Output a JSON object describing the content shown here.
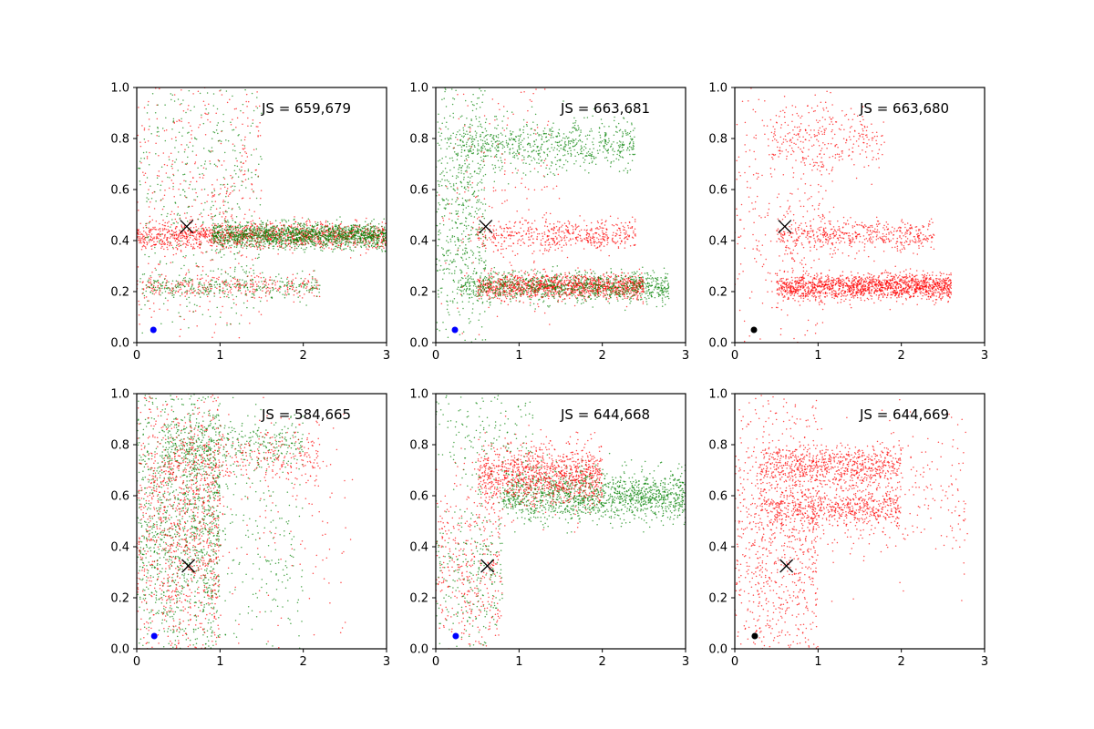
{
  "colors": {
    "series_a": "#ff0000",
    "series_b": "#008000",
    "cross": "#000000",
    "axis": "#000000"
  },
  "chart_data": [
    {
      "type": "scatter",
      "annotation": "JS = 659,679",
      "xlim": [
        0,
        3
      ],
      "ylim": [
        0,
        1
      ],
      "xticks": [
        "0",
        "1",
        "2",
        "3"
      ],
      "yticks": [
        "0.0",
        "0.2",
        "0.4",
        "0.6",
        "0.8",
        "1.0"
      ],
      "grid": false,
      "series_colors": [
        "red",
        "green"
      ],
      "clusters": [
        {
          "color": "red",
          "cx": [
            0.0,
            3.0
          ],
          "cy": 0.42,
          "sy": 0.025,
          "n": 1400
        },
        {
          "color": "green",
          "cx": [
            0.9,
            3.0
          ],
          "cy": 0.42,
          "sy": 0.025,
          "n": 1500
        },
        {
          "color": "red",
          "cx": [
            0.0,
            2.2
          ],
          "cy": 0.22,
          "sy": 0.025,
          "n": 300
        },
        {
          "color": "green",
          "cx": [
            0.0,
            2.2
          ],
          "cy": 0.22,
          "sy": 0.025,
          "n": 300
        },
        {
          "color": "red",
          "cx": [
            0.0,
            1.5
          ],
          "cy": 0.6,
          "sy": 0.35,
          "n": 500
        },
        {
          "color": "green",
          "cx": [
            0.0,
            1.5
          ],
          "cy": 0.6,
          "sy": 0.35,
          "n": 500
        }
      ],
      "cross": {
        "x": 0.6,
        "y": 0.455
      },
      "dot": {
        "x": 0.2,
        "y": 0.05,
        "color": "blue"
      }
    },
    {
      "type": "scatter",
      "annotation": "JS = 663,681",
      "xlim": [
        0,
        3
      ],
      "ylim": [
        0,
        1
      ],
      "xticks": [
        "0",
        "1",
        "2",
        "3"
      ],
      "yticks": [
        "0.0",
        "0.2",
        "0.4",
        "0.6",
        "0.8",
        "1.0"
      ],
      "grid": false,
      "series_colors": [
        "red",
        "green"
      ],
      "clusters": [
        {
          "color": "red",
          "cx": [
            0.5,
            2.5
          ],
          "cy": 0.22,
          "sy": 0.025,
          "n": 1300
        },
        {
          "color": "green",
          "cx": [
            0.3,
            2.8
          ],
          "cy": 0.22,
          "sy": 0.03,
          "n": 1000
        },
        {
          "color": "red",
          "cx": [
            0.5,
            2.4
          ],
          "cy": 0.42,
          "sy": 0.03,
          "n": 500
        },
        {
          "color": "green",
          "cx": [
            0.2,
            2.4
          ],
          "cy": 0.77,
          "sy": 0.05,
          "n": 700
        },
        {
          "color": "green",
          "cx": [
            0.0,
            0.6
          ],
          "cy": 0.55,
          "sy": 0.3,
          "n": 600
        },
        {
          "color": "red",
          "cx": [
            0.0,
            1.5
          ],
          "cy": 0.6,
          "sy": 0.3,
          "n": 200
        }
      ],
      "cross": {
        "x": 0.6,
        "y": 0.455
      },
      "dot": {
        "x": 0.23,
        "y": 0.05,
        "color": "blue"
      }
    },
    {
      "type": "scatter",
      "annotation": "JS = 663,680",
      "xlim": [
        0,
        3
      ],
      "ylim": [
        0,
        1
      ],
      "xticks": [
        "0",
        "1",
        "2",
        "3"
      ],
      "yticks": [
        "0.0",
        "0.2",
        "0.4",
        "0.6",
        "0.8",
        "1.0"
      ],
      "grid": false,
      "series_colors": [
        "red"
      ],
      "clusters": [
        {
          "color": "red",
          "cx": [
            0.5,
            2.6
          ],
          "cy": 0.22,
          "sy": 0.025,
          "n": 1600
        },
        {
          "color": "red",
          "cx": [
            0.5,
            2.4
          ],
          "cy": 0.42,
          "sy": 0.03,
          "n": 500
        },
        {
          "color": "red",
          "cx": [
            0.4,
            1.8
          ],
          "cy": 0.8,
          "sy": 0.06,
          "n": 250
        },
        {
          "color": "red",
          "cx": [
            0.0,
            1.2
          ],
          "cy": 0.55,
          "sy": 0.35,
          "n": 400
        }
      ],
      "cross": {
        "x": 0.6,
        "y": 0.455
      },
      "dot": {
        "x": 0.23,
        "y": 0.05,
        "color": "black"
      }
    },
    {
      "type": "scatter",
      "annotation": "JS = 584,665",
      "xlim": [
        0,
        3
      ],
      "ylim": [
        0,
        1
      ],
      "xticks": [
        "0",
        "1",
        "2",
        "3"
      ],
      "yticks": [
        "0.0",
        "0.2",
        "0.4",
        "0.6",
        "0.8",
        "1.0"
      ],
      "grid": false,
      "series_colors": [
        "red",
        "green"
      ],
      "clusters": [
        {
          "color": "green",
          "cx": [
            0.0,
            1.0
          ],
          "cy": 0.5,
          "sy": 0.3,
          "n": 1400
        },
        {
          "color": "red",
          "cx": [
            0.0,
            1.0
          ],
          "cy": 0.5,
          "sy": 0.3,
          "n": 1100
        },
        {
          "color": "green",
          "cx": [
            0.3,
            2.0
          ],
          "cy": 0.8,
          "sy": 0.05,
          "n": 400
        },
        {
          "color": "red",
          "cx": [
            0.3,
            2.2
          ],
          "cy": 0.75,
          "sy": 0.06,
          "n": 300
        },
        {
          "color": "green",
          "cx": [
            0.8,
            2.0
          ],
          "cy": 0.35,
          "sy": 0.25,
          "n": 200
        },
        {
          "color": "red",
          "cx": [
            0.8,
            2.6
          ],
          "cy": 0.5,
          "sy": 0.3,
          "n": 150
        }
      ],
      "cross": {
        "x": 0.62,
        "y": 0.325
      },
      "dot": {
        "x": 0.21,
        "y": 0.05,
        "color": "blue"
      }
    },
    {
      "type": "scatter",
      "annotation": "JS = 644,668",
      "xlim": [
        0,
        3
      ],
      "ylim": [
        0,
        1
      ],
      "xticks": [
        "0",
        "1",
        "2",
        "3"
      ],
      "yticks": [
        "0.0",
        "0.2",
        "0.4",
        "0.6",
        "0.8",
        "1.0"
      ],
      "grid": false,
      "series_colors": [
        "red",
        "green"
      ],
      "clusters": [
        {
          "color": "green",
          "cx": [
            0.8,
            3.0
          ],
          "cy": 0.6,
          "sy": 0.05,
          "n": 1400
        },
        {
          "color": "red",
          "cx": [
            0.5,
            2.0
          ],
          "cy": 0.68,
          "sy": 0.06,
          "n": 1100
        },
        {
          "color": "red",
          "cx": [
            0.0,
            0.8
          ],
          "cy": 0.3,
          "sy": 0.2,
          "n": 400
        },
        {
          "color": "green",
          "cx": [
            0.0,
            0.8
          ],
          "cy": 0.3,
          "sy": 0.2,
          "n": 300
        },
        {
          "color": "green",
          "cx": [
            0.0,
            1.2
          ],
          "cy": 0.85,
          "sy": 0.1,
          "n": 150
        }
      ],
      "cross": {
        "x": 0.62,
        "y": 0.325
      },
      "dot": {
        "x": 0.24,
        "y": 0.05,
        "color": "blue"
      }
    },
    {
      "type": "scatter",
      "annotation": "JS = 644,669",
      "xlim": [
        0,
        3
      ],
      "ylim": [
        0,
        1
      ],
      "xticks": [
        "0",
        "1",
        "2",
        "3"
      ],
      "yticks": [
        "0.0",
        "0.2",
        "0.4",
        "0.6",
        "0.8",
        "1.0"
      ],
      "grid": false,
      "series_colors": [
        "red"
      ],
      "clusters": [
        {
          "color": "red",
          "cx": [
            0.3,
            2.0
          ],
          "cy": 0.72,
          "sy": 0.04,
          "n": 700
        },
        {
          "color": "red",
          "cx": [
            0.3,
            2.0
          ],
          "cy": 0.55,
          "sy": 0.04,
          "n": 600
        },
        {
          "color": "red",
          "cx": [
            0.0,
            1.0
          ],
          "cy": 0.4,
          "sy": 0.3,
          "n": 900
        },
        {
          "color": "red",
          "cx": [
            0.8,
            2.8
          ],
          "cy": 0.6,
          "sy": 0.15,
          "n": 300
        }
      ],
      "cross": {
        "x": 0.62,
        "y": 0.325
      },
      "dot": {
        "x": 0.24,
        "y": 0.05,
        "color": "black"
      }
    }
  ]
}
